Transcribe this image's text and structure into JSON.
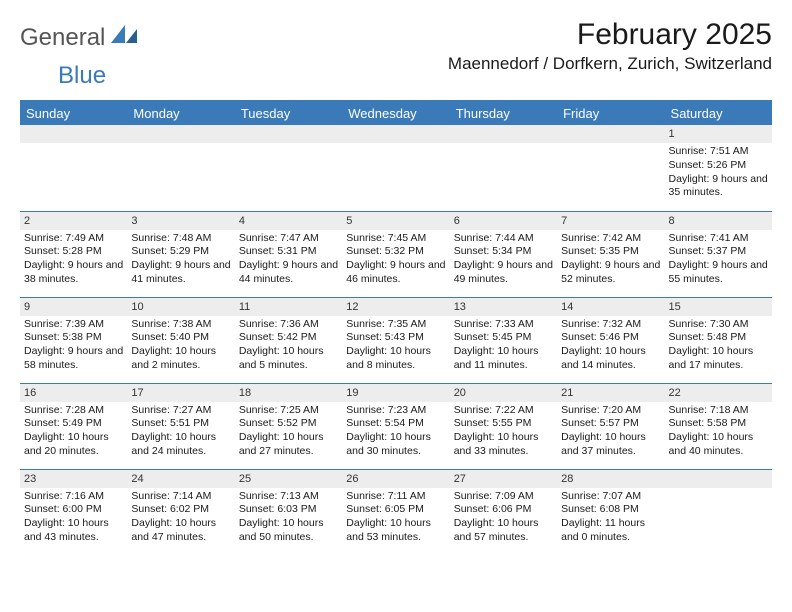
{
  "logo": {
    "general": "General",
    "blue": "Blue"
  },
  "title": "February 2025",
  "location": "Maennedorf / Dorfkern, Zurich, Switzerland",
  "colors": {
    "header_bg": "#3a7ab8",
    "header_text": "#ffffff",
    "daynum_bg": "#ededed",
    "rule": "#3a7ab8",
    "text": "#1a1a1a"
  },
  "day_headers": [
    "Sunday",
    "Monday",
    "Tuesday",
    "Wednesday",
    "Thursday",
    "Friday",
    "Saturday"
  ],
  "weeks": [
    [
      null,
      null,
      null,
      null,
      null,
      null,
      {
        "n": "1",
        "sunrise": "7:51 AM",
        "sunset": "5:26 PM",
        "daylight": "9 hours and 35 minutes."
      }
    ],
    [
      {
        "n": "2",
        "sunrise": "7:49 AM",
        "sunset": "5:28 PM",
        "daylight": "9 hours and 38 minutes."
      },
      {
        "n": "3",
        "sunrise": "7:48 AM",
        "sunset": "5:29 PM",
        "daylight": "9 hours and 41 minutes."
      },
      {
        "n": "4",
        "sunrise": "7:47 AM",
        "sunset": "5:31 PM",
        "daylight": "9 hours and 44 minutes."
      },
      {
        "n": "5",
        "sunrise": "7:45 AM",
        "sunset": "5:32 PM",
        "daylight": "9 hours and 46 minutes."
      },
      {
        "n": "6",
        "sunrise": "7:44 AM",
        "sunset": "5:34 PM",
        "daylight": "9 hours and 49 minutes."
      },
      {
        "n": "7",
        "sunrise": "7:42 AM",
        "sunset": "5:35 PM",
        "daylight": "9 hours and 52 minutes."
      },
      {
        "n": "8",
        "sunrise": "7:41 AM",
        "sunset": "5:37 PM",
        "daylight": "9 hours and 55 minutes."
      }
    ],
    [
      {
        "n": "9",
        "sunrise": "7:39 AM",
        "sunset": "5:38 PM",
        "daylight": "9 hours and 58 minutes."
      },
      {
        "n": "10",
        "sunrise": "7:38 AM",
        "sunset": "5:40 PM",
        "daylight": "10 hours and 2 minutes."
      },
      {
        "n": "11",
        "sunrise": "7:36 AM",
        "sunset": "5:42 PM",
        "daylight": "10 hours and 5 minutes."
      },
      {
        "n": "12",
        "sunrise": "7:35 AM",
        "sunset": "5:43 PM",
        "daylight": "10 hours and 8 minutes."
      },
      {
        "n": "13",
        "sunrise": "7:33 AM",
        "sunset": "5:45 PM",
        "daylight": "10 hours and 11 minutes."
      },
      {
        "n": "14",
        "sunrise": "7:32 AM",
        "sunset": "5:46 PM",
        "daylight": "10 hours and 14 minutes."
      },
      {
        "n": "15",
        "sunrise": "7:30 AM",
        "sunset": "5:48 PM",
        "daylight": "10 hours and 17 minutes."
      }
    ],
    [
      {
        "n": "16",
        "sunrise": "7:28 AM",
        "sunset": "5:49 PM",
        "daylight": "10 hours and 20 minutes."
      },
      {
        "n": "17",
        "sunrise": "7:27 AM",
        "sunset": "5:51 PM",
        "daylight": "10 hours and 24 minutes."
      },
      {
        "n": "18",
        "sunrise": "7:25 AM",
        "sunset": "5:52 PM",
        "daylight": "10 hours and 27 minutes."
      },
      {
        "n": "19",
        "sunrise": "7:23 AM",
        "sunset": "5:54 PM",
        "daylight": "10 hours and 30 minutes."
      },
      {
        "n": "20",
        "sunrise": "7:22 AM",
        "sunset": "5:55 PM",
        "daylight": "10 hours and 33 minutes."
      },
      {
        "n": "21",
        "sunrise": "7:20 AM",
        "sunset": "5:57 PM",
        "daylight": "10 hours and 37 minutes."
      },
      {
        "n": "22",
        "sunrise": "7:18 AM",
        "sunset": "5:58 PM",
        "daylight": "10 hours and 40 minutes."
      }
    ],
    [
      {
        "n": "23",
        "sunrise": "7:16 AM",
        "sunset": "6:00 PM",
        "daylight": "10 hours and 43 minutes."
      },
      {
        "n": "24",
        "sunrise": "7:14 AM",
        "sunset": "6:02 PM",
        "daylight": "10 hours and 47 minutes."
      },
      {
        "n": "25",
        "sunrise": "7:13 AM",
        "sunset": "6:03 PM",
        "daylight": "10 hours and 50 minutes."
      },
      {
        "n": "26",
        "sunrise": "7:11 AM",
        "sunset": "6:05 PM",
        "daylight": "10 hours and 53 minutes."
      },
      {
        "n": "27",
        "sunrise": "7:09 AM",
        "sunset": "6:06 PM",
        "daylight": "10 hours and 57 minutes."
      },
      {
        "n": "28",
        "sunrise": "7:07 AM",
        "sunset": "6:08 PM",
        "daylight": "11 hours and 0 minutes."
      },
      null
    ]
  ],
  "labels": {
    "sunrise": "Sunrise: ",
    "sunset": "Sunset: ",
    "daylight": "Daylight: "
  }
}
